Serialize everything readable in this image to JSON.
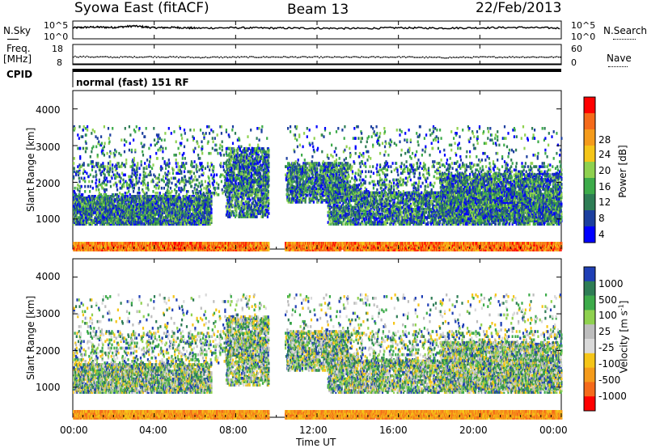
{
  "header": {
    "title": "Syowa East (fitACF)",
    "beam": "Beam 13",
    "date": "22/Feb/2013"
  },
  "noise_panel": {
    "left_label": "N.Sky",
    "right_label": "N.Search",
    "left_ticks": [
      "10^5",
      "10^0"
    ],
    "right_ticks": [
      "10^5",
      "10^0"
    ]
  },
  "freq_panel": {
    "left_label": "Freq.",
    "left_unit": "[MHz]",
    "right_label": "Nave",
    "left_ticks": [
      "18",
      "8"
    ],
    "right_ticks": [
      "60",
      "0"
    ]
  },
  "cpid": {
    "label": "CPID",
    "value": "normal (fast) 151 RF"
  },
  "power_panel": {
    "ylabel": "Slant Range [km]",
    "yticks": [
      "4000",
      "3000",
      "2000",
      "1000"
    ],
    "colorbar_label": "Power [dB]",
    "colorbar_ticks": [
      "28",
      "24",
      "20",
      "16",
      "12",
      "8",
      "4"
    ],
    "colors": [
      "#0000ff",
      "#1c3f9e",
      "#2e7d55",
      "#3dab4a",
      "#8fd14f",
      "#f5c518",
      "#f59b1b",
      "#f56a1a",
      "#ff0000"
    ]
  },
  "velocity_panel": {
    "ylabel": "Slant Range [km]",
    "yticks": [
      "4000",
      "3000",
      "2000",
      "1000"
    ],
    "colorbar_label": "Velocity [m s^-1]",
    "colorbar_ticks": [
      "1000",
      "500",
      "100",
      "25",
      "-25",
      "-100",
      "-500",
      "-1000"
    ],
    "colors": [
      "#1f3fb5",
      "#2e7d55",
      "#3dab4a",
      "#8fd14f",
      "#bdbdbd",
      "#d9d9d9",
      "#f5c518",
      "#f59b1b",
      "#f56a1a",
      "#ff0000"
    ]
  },
  "xaxis": {
    "label": "Time UT",
    "ticks": [
      "00:00",
      "04:00",
      "08:00",
      "12:00",
      "16:00",
      "20:00",
      "00:00"
    ]
  },
  "chart_data": [
    {
      "type": "line",
      "name": "noise",
      "x_range": [
        0,
        24
      ],
      "ylim_log10": [
        0,
        5
      ],
      "series": [
        {
          "name": "N.Sky",
          "x": [
            0,
            1,
            2,
            3,
            4,
            5,
            6,
            8,
            10,
            12,
            14,
            16,
            18,
            20,
            22,
            24
          ],
          "y_log10": [
            3.1,
            3.3,
            3.2,
            3.6,
            3.1,
            3.2,
            3.0,
            3.1,
            3.0,
            3.0,
            2.9,
            3.1,
            3.0,
            3.1,
            3.2,
            3.0
          ]
        }
      ]
    },
    {
      "type": "scatter",
      "name": "frequency",
      "x_range": [
        0,
        24
      ],
      "ylim": [
        8,
        18
      ],
      "series": [
        {
          "name": "Freq",
          "x": [
            0,
            2,
            4,
            6,
            8,
            10,
            12,
            14,
            16,
            18,
            20,
            22,
            24
          ],
          "y": [
            12.3,
            12.0,
            12.2,
            11.9,
            12.0,
            12.1,
            12.0,
            12.0,
            12.1,
            11.8,
            12.0,
            12.1,
            12.0
          ]
        },
        {
          "name": "Nave",
          "x": [
            0,
            4,
            8,
            12,
            16,
            20,
            24
          ],
          "y": [
            8.3,
            8.3,
            8.3,
            8.3,
            8.3,
            8.3,
            8.3
          ]
        }
      ]
    },
    {
      "type": "heatmap",
      "name": "power",
      "x_range": [
        0,
        24
      ],
      "ylim": [
        180,
        4500
      ],
      "zlim": [
        0,
        30
      ],
      "xlabel": "Time UT",
      "ylabel": "Slant Range [km]"
    },
    {
      "type": "heatmap",
      "name": "velocity",
      "x_range": [
        0,
        24
      ],
      "ylim": [
        180,
        4500
      ],
      "zlim": [
        -1000,
        1000
      ],
      "xlabel": "Time UT",
      "ylabel": "Slant Range [km]"
    }
  ]
}
